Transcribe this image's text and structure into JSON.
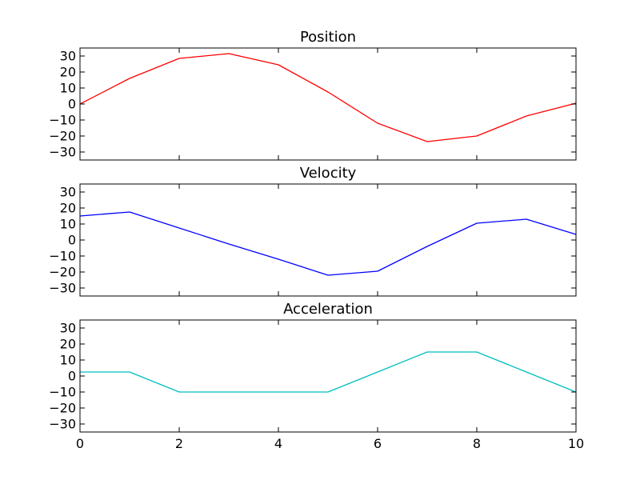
{
  "chart_data": [
    {
      "type": "line",
      "title": "Position",
      "x": [
        0,
        1,
        2,
        3,
        4,
        5,
        6,
        7,
        8,
        9,
        10
      ],
      "series": [
        {
          "values": [
            0,
            16,
            28.5,
            31.5,
            24.5,
            7.5,
            -12,
            -23.5,
            -20,
            -7.5,
            0.5
          ],
          "color": "#ff0000"
        }
      ],
      "xlim": [
        0,
        10
      ],
      "ylim": [
        -35,
        35
      ],
      "yticks": [
        30,
        20,
        10,
        0,
        -10,
        -20,
        -30
      ],
      "ytick_labels": [
        "30",
        "20",
        "10",
        "0",
        "−10",
        "−20",
        "−30"
      ],
      "xticks": [
        0,
        2,
        4,
        6,
        8,
        10
      ],
      "xtick_labels": [],
      "grid": false
    },
    {
      "type": "line",
      "title": "Velocity",
      "x": [
        0,
        1,
        2,
        3,
        4,
        5,
        6,
        7,
        8,
        9,
        10
      ],
      "series": [
        {
          "values": [
            15,
            17.5,
            7.5,
            -2.5,
            -12,
            -22,
            -19.5,
            -4,
            10.5,
            13,
            3.5
          ],
          "color": "#0000ff"
        }
      ],
      "xlim": [
        0,
        10
      ],
      "ylim": [
        -35,
        35
      ],
      "yticks": [
        30,
        20,
        10,
        0,
        -10,
        -20,
        -30
      ],
      "ytick_labels": [
        "30",
        "20",
        "10",
        "0",
        "−10",
        "−20",
        "−30"
      ],
      "xticks": [
        0,
        2,
        4,
        6,
        8,
        10
      ],
      "xtick_labels": [],
      "grid": false
    },
    {
      "type": "line",
      "title": "Acceleration",
      "x": [
        0,
        1,
        2,
        3,
        4,
        5,
        6,
        7,
        8,
        9,
        10
      ],
      "series": [
        {
          "values": [
            2.5,
            2.5,
            -10,
            -10,
            -10,
            -10,
            2.5,
            15,
            15,
            2.5,
            -10
          ],
          "color": "#00bfbf"
        }
      ],
      "xlim": [
        0,
        10
      ],
      "ylim": [
        -35,
        35
      ],
      "yticks": [
        30,
        20,
        10,
        0,
        -10,
        -20,
        -30
      ],
      "ytick_labels": [
        "30",
        "20",
        "10",
        "0",
        "−10",
        "−20",
        "−30"
      ],
      "xticks": [
        0,
        2,
        4,
        6,
        8,
        10
      ],
      "xtick_labels": [
        "0",
        "2",
        "4",
        "6",
        "8",
        "10"
      ],
      "grid": false
    }
  ]
}
